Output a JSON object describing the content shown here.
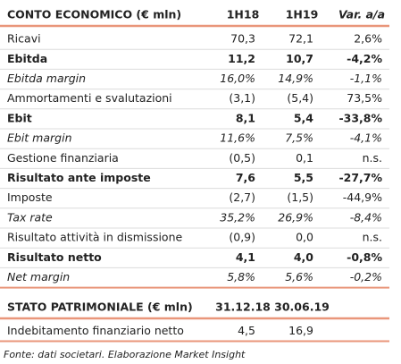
{
  "income_table": {
    "header": [
      "CONTO ECONOMICO (€ mln)",
      "1H18",
      "1H19",
      "Var. a/a"
    ],
    "rows": [
      {
        "label": "Ricavi",
        "values": [
          "70,3",
          "72,1",
          "2,6%"
        ],
        "style": "normal"
      },
      {
        "label": "Ebitda",
        "values": [
          "11,2",
          "10,7",
          "-4,2%"
        ],
        "style": "bold"
      },
      {
        "label": "Ebitda margin",
        "values": [
          "16,0%",
          "14,9%",
          "-1,1%"
        ],
        "style": "italic"
      },
      {
        "label": "Ammortamenti e svalutazioni",
        "values": [
          "(3,1)",
          "(5,4)",
          "73,5%"
        ],
        "style": "normal"
      },
      {
        "label": "Ebit",
        "values": [
          "8,1",
          "5,4",
          "-33,8%"
        ],
        "style": "bold"
      },
      {
        "label": "Ebit margin",
        "values": [
          "11,6%",
          "7,5%",
          "-4,1%"
        ],
        "style": "italic"
      },
      {
        "label": "Gestione finanziaria",
        "values": [
          "(0,5)",
          "0,1",
          "n.s."
        ],
        "style": "normal"
      },
      {
        "label": "Risultato ante imposte",
        "values": [
          "7,6",
          "5,5",
          "-27,7%"
        ],
        "style": "bold"
      },
      {
        "label": "Imposte",
        "values": [
          "(2,7)",
          "(1,5)",
          "-44,9%"
        ],
        "style": "normal"
      },
      {
        "label": "Tax rate",
        "values": [
          "35,2%",
          "26,9%",
          "-8,4%"
        ],
        "style": "italic"
      },
      {
        "label": "Risultato attività in dismissione",
        "values": [
          "(0,9)",
          "0,0",
          "n.s."
        ],
        "style": "normal"
      },
      {
        "label": "Risultato netto",
        "values": [
          "4,1",
          "4,0",
          "-0,8%"
        ],
        "style": "bold"
      },
      {
        "label": "Net margin",
        "values": [
          "5,8%",
          "5,6%",
          "-0,2%"
        ],
        "style": "italic"
      }
    ]
  },
  "balance_table": {
    "header": [
      "STATO PATRIMONIALE (€ mln)",
      "31.12.18",
      "30.06.19"
    ],
    "rows": [
      {
        "label": "Indebitamento finanziario netto",
        "values": [
          "4,5",
          "16,9"
        ],
        "style": "normal"
      }
    ]
  },
  "source": "Fonte: dati societari. Elaborazione Market Insight"
}
